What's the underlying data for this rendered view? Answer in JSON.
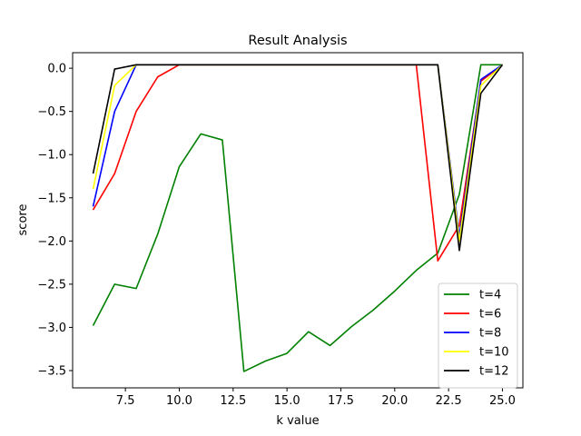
{
  "chart_data": {
    "type": "line",
    "title": "Result Analysis",
    "xlabel": "k value",
    "ylabel": "score",
    "xlim": [
      5.05,
      25.95
    ],
    "ylim": [
      -3.7,
      0.18
    ],
    "xticks": [
      7.5,
      10.0,
      12.5,
      15.0,
      17.5,
      20.0,
      22.5,
      25.0
    ],
    "xtick_labels": [
      "7.5",
      "10.0",
      "12.5",
      "15.0",
      "17.5",
      "20.0",
      "22.5",
      "25.0"
    ],
    "yticks": [
      0.0,
      -0.5,
      -1.0,
      -1.5,
      -2.0,
      -2.5,
      -3.0,
      -3.5
    ],
    "ytick_labels": [
      "0.0",
      "−0.5",
      "−1.0",
      "−1.5",
      "−2.0",
      "−2.5",
      "−3.0",
      "−3.5"
    ],
    "grid": false,
    "legend_position": "lower-right",
    "x": [
      6,
      7,
      8,
      9,
      10,
      11,
      12,
      13,
      14,
      15,
      16,
      17,
      18,
      19,
      20,
      21,
      22,
      23,
      24,
      25
    ],
    "series": [
      {
        "name": "t=4",
        "color": "#008000",
        "values": [
          -2.98,
          -2.5,
          -2.55,
          -1.92,
          -1.14,
          -0.76,
          -0.83,
          -3.51,
          -3.39,
          -3.3,
          -3.05,
          -3.21,
          -2.99,
          -2.8,
          -2.58,
          -2.34,
          -2.14,
          -1.46,
          0.04,
          0.04
        ]
      },
      {
        "name": "t=6",
        "color": "#ff0000",
        "values": [
          -1.64,
          -1.22,
          -0.5,
          -0.1,
          0.04,
          0.04,
          0.04,
          0.04,
          0.04,
          0.04,
          0.04,
          0.04,
          0.04,
          0.04,
          0.04,
          0.04,
          -2.23,
          -1.82,
          -0.15,
          0.04
        ]
      },
      {
        "name": "t=8",
        "color": "#0000ff",
        "values": [
          -1.6,
          -0.5,
          0.04,
          0.04,
          0.04,
          0.04,
          0.04,
          0.04,
          0.04,
          0.04,
          0.04,
          0.04,
          0.04,
          0.04,
          0.04,
          0.04,
          0.04,
          -1.95,
          -0.13,
          0.04
        ]
      },
      {
        "name": "t=10",
        "color": "#ffff00",
        "values": [
          -1.4,
          -0.2,
          0.04,
          0.04,
          0.04,
          0.04,
          0.04,
          0.04,
          0.04,
          0.04,
          0.04,
          0.04,
          0.04,
          0.04,
          0.04,
          0.04,
          0.04,
          -2.0,
          -0.2,
          0.04
        ]
      },
      {
        "name": "t=12",
        "color": "#000000",
        "values": [
          -1.22,
          -0.01,
          0.04,
          0.04,
          0.04,
          0.04,
          0.04,
          0.04,
          0.04,
          0.04,
          0.04,
          0.04,
          0.04,
          0.04,
          0.04,
          0.04,
          0.04,
          -2.11,
          -0.29,
          0.04
        ]
      }
    ]
  }
}
